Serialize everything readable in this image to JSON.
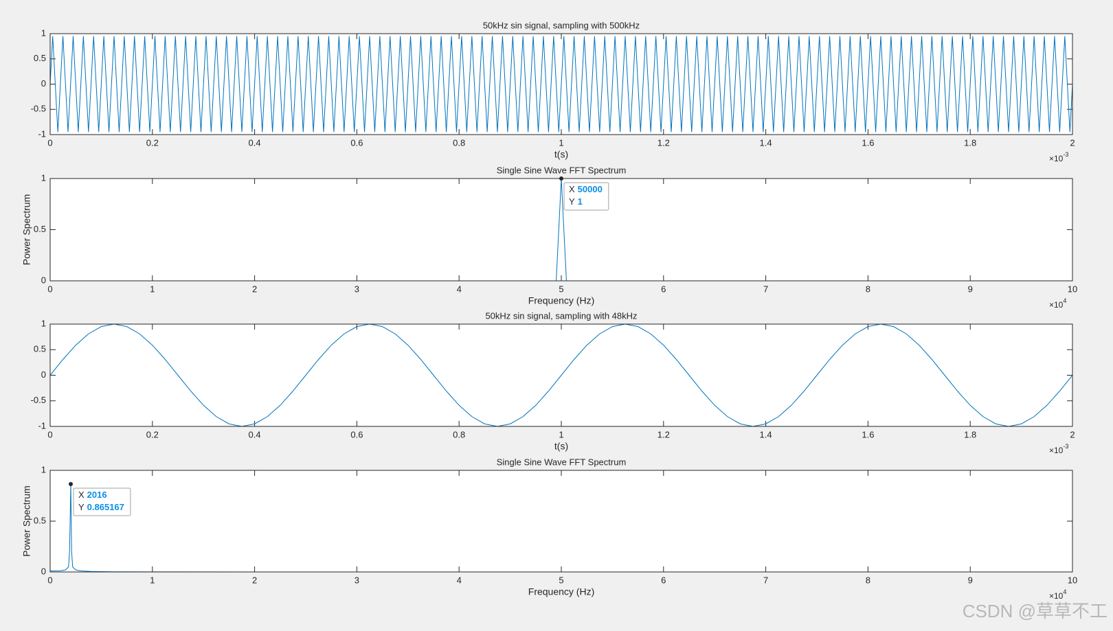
{
  "chart_data": [
    {
      "type": "line",
      "title": "50kHz sin signal, sampling with 500kHz",
      "xlabel": "t(s)",
      "x_multiplier": "×10",
      "x_exponent": "-3",
      "color": "#0072bd",
      "xlim": [
        0,
        2
      ],
      "xticks": [
        0,
        0.2,
        0.4,
        0.6,
        0.8,
        1,
        1.2,
        1.4,
        1.6,
        1.8,
        2
      ],
      "ylim": [
        -1,
        1
      ],
      "yticks": [
        -1,
        -0.5,
        0,
        0.5,
        1
      ],
      "x": [
        0,
        0.005,
        0.01,
        0.015,
        0.02,
        0.025,
        0.03,
        0.035,
        0.04,
        0.045,
        0.05,
        0.055,
        0.06,
        0.065,
        0.07,
        0.075,
        0.08,
        0.085,
        0.09,
        0.095,
        0.1,
        0.105,
        0.11,
        0.115,
        0.12,
        0.125,
        0.13,
        0.135,
        0.14,
        0.145,
        0.15,
        0.155,
        0.16,
        0.165,
        0.17,
        0.175,
        0.18,
        0.185,
        0.19,
        0.195,
        0.2,
        0.205,
        0.21,
        0.215,
        0.22,
        0.225,
        0.23,
        0.235,
        0.24,
        0.245,
        0.25,
        0.255,
        0.26,
        0.265,
        0.27,
        0.275,
        0.28,
        0.285,
        0.29,
        0.295,
        0.3,
        0.305,
        0.31,
        0.315,
        0.32,
        0.325,
        0.33,
        0.335,
        0.34,
        0.345,
        0.35,
        0.355,
        0.36,
        0.365,
        0.37,
        0.375,
        0.38,
        0.385,
        0.39,
        0.395,
        0.4,
        0.405,
        0.41,
        0.415,
        0.42,
        0.425,
        0.43,
        0.435,
        0.44,
        0.445,
        0.45,
        0.455,
        0.46,
        0.465,
        0.47,
        0.475,
        0.48,
        0.485,
        0.49,
        0.495,
        0.5,
        0.505,
        0.51,
        0.515,
        0.52,
        0.525,
        0.53,
        0.535,
        0.54,
        0.545,
        0.55,
        0.555,
        0.56,
        0.565,
        0.57,
        0.575,
        0.58,
        0.585,
        0.59,
        0.595,
        0.6,
        0.605,
        0.61,
        0.615,
        0.62,
        0.625,
        0.63,
        0.635,
        0.64,
        0.645,
        0.65,
        0.655,
        0.66,
        0.665,
        0.67,
        0.675,
        0.68,
        0.685,
        0.69,
        0.695,
        0.7,
        0.705,
        0.71,
        0.715,
        0.72,
        0.725,
        0.73,
        0.735,
        0.74,
        0.745,
        0.75,
        0.755,
        0.76,
        0.765,
        0.77,
        0.775,
        0.78,
        0.785,
        0.79,
        0.795,
        0.8,
        0.805,
        0.81,
        0.815,
        0.82,
        0.825,
        0.83,
        0.835,
        0.84,
        0.845,
        0.85,
        0.855,
        0.86,
        0.865,
        0.87,
        0.875,
        0.88,
        0.885,
        0.89,
        0.895,
        0.9,
        0.905,
        0.91,
        0.915,
        0.92,
        0.925,
        0.93,
        0.935,
        0.94,
        0.945,
        0.95,
        0.955,
        0.96,
        0.965,
        0.97,
        0.975,
        0.98,
        0.985,
        0.99,
        0.995,
        1,
        1.005,
        1.01,
        1.015,
        1.02,
        1.025,
        1.03,
        1.035,
        1.04,
        1.045,
        1.05,
        1.055,
        1.06,
        1.065,
        1.07,
        1.075,
        1.08,
        1.085,
        1.09,
        1.095,
        1.1,
        1.105,
        1.11,
        1.115,
        1.12,
        1.125,
        1.13,
        1.135,
        1.14,
        1.145,
        1.15,
        1.155,
        1.16,
        1.165,
        1.17,
        1.175,
        1.18,
        1.185,
        1.19,
        1.195,
        1.2,
        1.205,
        1.21,
        1.215,
        1.22,
        1.225,
        1.23,
        1.235,
        1.24,
        1.245,
        1.25,
        1.255,
        1.26,
        1.265,
        1.27,
        1.275,
        1.28,
        1.285,
        1.29,
        1.295,
        1.3,
        1.305,
        1.31,
        1.315,
        1.32,
        1.325,
        1.33,
        1.335,
        1.34,
        1.345,
        1.35,
        1.355,
        1.36,
        1.365,
        1.37,
        1.375,
        1.38,
        1.385,
        1.39,
        1.395,
        1.4,
        1.405,
        1.41,
        1.415,
        1.42,
        1.425,
        1.43,
        1.435,
        1.44,
        1.445,
        1.45,
        1.455,
        1.46,
        1.465,
        1.47,
        1.475,
        1.48,
        1.485,
        1.49,
        1.495,
        1.5,
        1.505,
        1.51,
        1.515,
        1.52,
        1.525,
        1.53,
        1.535,
        1.54,
        1.545,
        1.55,
        1.555,
        1.56,
        1.565,
        1.57,
        1.575,
        1.58,
        1.585,
        1.59,
        1.595,
        1.6,
        1.605,
        1.61,
        1.615,
        1.62,
        1.625,
        1.63,
        1.635,
        1.64,
        1.645,
        1.65,
        1.655,
        1.66,
        1.665,
        1.67,
        1.675,
        1.68,
        1.685,
        1.69,
        1.695,
        1.7,
        1.705,
        1.71,
        1.715,
        1.72,
        1.725,
        1.73,
        1.735,
        1.74,
        1.745,
        1.75,
        1.755,
        1.76,
        1.765,
        1.77,
        1.775,
        1.78,
        1.785,
        1.79,
        1.795,
        1.8,
        1.805,
        1.81,
        1.815,
        1.82,
        1.825,
        1.83,
        1.835,
        1.84,
        1.845,
        1.85,
        1.855,
        1.86,
        1.865,
        1.87,
        1.875,
        1.88,
        1.885,
        1.89,
        1.895,
        1.9,
        1.905,
        1.91,
        1.915,
        1.92,
        1.925,
        1.93,
        1.935,
        1.94,
        1.945,
        1.95,
        1.955,
        1.96,
        1.965,
        1.97,
        1.975,
        1.98,
        1.985,
        1.99,
        1.995,
        2
      ],
      "values": [
        0,
        0.95,
        0,
        -0.95,
        0,
        0.95,
        0,
        -0.95,
        0,
        0.95,
        0,
        -0.95,
        0,
        0.95,
        0,
        -0.95,
        0,
        0.95,
        0,
        -0.95,
        0,
        0.95,
        0,
        -0.95,
        0,
        0.95,
        0,
        -0.95,
        0,
        0.95,
        0,
        -0.95,
        0,
        0.95,
        0,
        -0.95,
        0,
        0.95,
        0,
        -0.95,
        0,
        0.95,
        0,
        -0.95,
        0,
        0.95,
        0,
        -0.95,
        0,
        0.95,
        0,
        -0.95,
        0,
        0.95,
        0,
        -0.95,
        0,
        0.95,
        0,
        -0.95,
        0,
        0.95,
        0,
        -0.95,
        0,
        0.95,
        0,
        -0.95,
        0,
        0.95,
        0,
        -0.95,
        0,
        0.95,
        0,
        -0.95,
        0,
        0.95,
        0,
        -0.95,
        0,
        0.95,
        0,
        -0.95,
        0,
        0.95,
        0,
        -0.95,
        0,
        0.95,
        0,
        -0.95,
        0,
        0.95,
        0,
        -0.95,
        0,
        0.95,
        0,
        -0.95,
        0,
        0.95,
        0,
        -0.95,
        0,
        0.95,
        0,
        -0.95,
        0,
        0.95,
        0,
        -0.95,
        0,
        0.95,
        0,
        -0.95,
        0,
        0.95,
        0,
        -0.95,
        0,
        0.95,
        0,
        -0.95,
        0,
        0.95,
        0,
        -0.95,
        0,
        0.95,
        0,
        -0.95,
        0,
        0.95,
        0,
        -0.95,
        0,
        0.95,
        0,
        -0.95,
        0,
        0.95,
        0,
        -0.95,
        0,
        0.95,
        0,
        -0.95,
        0,
        0.95,
        0,
        -0.95,
        0,
        0.95,
        0,
        -0.95,
        0,
        0.95,
        0,
        -0.95,
        0,
        0.95,
        0,
        -0.95,
        0,
        0.95,
        0,
        -0.95,
        0,
        0.95,
        0,
        -0.95,
        0,
        0.95,
        0,
        -0.95,
        0,
        0.95,
        0,
        -0.95,
        0,
        0.95,
        0,
        -0.95,
        0,
        0.95,
        0,
        -0.95,
        0,
        0.95,
        0,
        -0.95,
        0,
        0.95,
        0,
        -0.95,
        0,
        0.95,
        0,
        -0.95,
        0,
        0.95,
        0,
        -0.95,
        0,
        0.95,
        0,
        -0.95,
        0,
        0.95,
        0,
        -0.95,
        0,
        0.95,
        0,
        -0.95,
        0,
        0.95,
        0,
        -0.95,
        0,
        0.95,
        0,
        -0.95,
        0,
        0.95,
        0,
        -0.95,
        0,
        0.95,
        0,
        -0.95,
        0,
        0.95,
        0,
        -0.95,
        0,
        0.95,
        0,
        -0.95,
        0,
        0.95,
        0,
        -0.95,
        0,
        0.95,
        0,
        -0.95,
        0,
        0.95,
        0,
        -0.95,
        0,
        0.95,
        0,
        -0.95,
        0,
        0.95,
        0,
        -0.95,
        0,
        0.95,
        0,
        -0.95,
        0,
        0.95,
        0,
        -0.95,
        0,
        0.95,
        0,
        -0.95,
        0,
        0.95,
        0,
        -0.95,
        0,
        0.95,
        0,
        -0.95,
        0,
        0.95,
        0,
        -0.95,
        0,
        0.95,
        0,
        -0.95,
        0,
        0.95,
        0,
        -0.95,
        0,
        0.95,
        0,
        -0.95,
        0,
        0.95,
        0,
        -0.95,
        0,
        0.95,
        0,
        -0.95,
        0,
        0.95,
        0,
        -0.95,
        0,
        0.95,
        0,
        -0.95,
        0,
        0.95,
        0,
        -0.95,
        0,
        0.95,
        0,
        -0.95,
        0,
        0.95,
        0,
        -0.95,
        0,
        0.95,
        0,
        -0.95,
        0,
        0.95,
        0,
        -0.95,
        0,
        0.95,
        0,
        -0.95,
        0,
        0.95,
        0,
        -0.95,
        0,
        0.95,
        0,
        -0.95,
        0,
        0.95,
        0,
        -0.95,
        0,
        0.95,
        0,
        -0.95,
        0,
        0.95,
        0,
        -0.95,
        0,
        0.95,
        0,
        -0.95,
        0,
        0.95,
        0,
        -0.95,
        0,
        0.95,
        0,
        -0.95,
        0,
        0.95,
        0,
        -0.95,
        0,
        0.95,
        0,
        -0.95,
        0,
        0.95,
        0,
        -0.95,
        0,
        0.95,
        0,
        -0.95,
        0,
        0.95,
        0,
        -0.95,
        0,
        0.95,
        0,
        -0.95,
        0,
        0.95,
        0,
        -0.95,
        0,
        0.95,
        0,
        -0.95,
        0
      ]
    },
    {
      "type": "line",
      "title": "Single Sine Wave FFT Spectrum",
      "xlabel": "Frequency (Hz)",
      "ylabel": "Power Spectrum",
      "x_multiplier": "×10",
      "x_exponent": "4",
      "color": "#0072bd",
      "xlim": [
        0,
        100000
      ],
      "xticks": [
        0,
        {
          "value": 10000,
          "label": "1"
        },
        {
          "value": 20000,
          "label": "2"
        },
        {
          "value": 30000,
          "label": "3"
        },
        {
          "value": 40000,
          "label": "4"
        },
        {
          "value": 50000,
          "label": "5"
        },
        {
          "value": 60000,
          "label": "6"
        },
        {
          "value": 70000,
          "label": "7"
        },
        {
          "value": 80000,
          "label": "8"
        },
        {
          "value": 90000,
          "label": "9"
        },
        {
          "value": 100000,
          "label": "10"
        }
      ],
      "ylim": [
        0,
        1
      ],
      "yticks": [
        0,
        0.5,
        1
      ],
      "x": [
        0,
        49500,
        50000,
        50500,
        100000
      ],
      "values": [
        0,
        0,
        1,
        0,
        0
      ],
      "datatip": {
        "x_label": "X",
        "x": 50000,
        "y_label": "Y",
        "y": 1
      }
    },
    {
      "type": "line",
      "title": "50kHz sin signal, sampling with 48kHz",
      "xlabel": "t(s)",
      "x_multiplier": "×10",
      "x_exponent": "-3",
      "color": "#0072bd",
      "xlim": [
        0,
        2
      ],
      "xticks": [
        0,
        0.2,
        0.4,
        0.6,
        0.8,
        1,
        1.2,
        1.4,
        1.6,
        1.8,
        2
      ],
      "ylim": [
        -1,
        1
      ],
      "yticks": [
        -1,
        -0.5,
        0,
        0.5,
        1
      ],
      "x": [
        0,
        0.025,
        0.05,
        0.075,
        0.1,
        0.125,
        0.15,
        0.175,
        0.2,
        0.225,
        0.25,
        0.275,
        0.3,
        0.325,
        0.35,
        0.375,
        0.4,
        0.425,
        0.45,
        0.475,
        0.5,
        0.525,
        0.55,
        0.575,
        0.6,
        0.625,
        0.65,
        0.675,
        0.7,
        0.725,
        0.75,
        0.775,
        0.8,
        0.825,
        0.85,
        0.875,
        0.9,
        0.925,
        0.95,
        0.975,
        1,
        1.025,
        1.05,
        1.075,
        1.1,
        1.125,
        1.15,
        1.175,
        1.2,
        1.225,
        1.25,
        1.275,
        1.3,
        1.325,
        1.35,
        1.375,
        1.4,
        1.425,
        1.45,
        1.475,
        1.5,
        1.525,
        1.55,
        1.575,
        1.6,
        1.625,
        1.65,
        1.675,
        1.7,
        1.725,
        1.75,
        1.775,
        1.8,
        1.825,
        1.85,
        1.875,
        1.9,
        1.925,
        1.95,
        1.975,
        2
      ],
      "values": [
        0,
        0.309,
        0.588,
        0.809,
        0.951,
        1,
        0.951,
        0.809,
        0.588,
        0.309,
        0,
        -0.309,
        -0.588,
        -0.809,
        -0.951,
        -1,
        -0.951,
        -0.809,
        -0.588,
        -0.309,
        0,
        0.309,
        0.588,
        0.809,
        0.951,
        1,
        0.951,
        0.809,
        0.588,
        0.309,
        0,
        -0.309,
        -0.588,
        -0.809,
        -0.951,
        -1,
        -0.951,
        -0.809,
        -0.588,
        -0.309,
        0,
        0.309,
        0.588,
        0.809,
        0.951,
        1,
        0.951,
        0.809,
        0.588,
        0.309,
        0,
        -0.309,
        -0.588,
        -0.809,
        -0.951,
        -1,
        -0.951,
        -0.809,
        -0.588,
        -0.309,
        0,
        0.309,
        0.588,
        0.809,
        0.951,
        1,
        0.951,
        0.809,
        0.588,
        0.309,
        0,
        -0.309,
        -0.588,
        -0.809,
        -0.951,
        -1,
        -0.951,
        -0.809,
        -0.588,
        -0.309,
        0
      ]
    },
    {
      "type": "line",
      "title": "Single Sine Wave FFT Spectrum",
      "xlabel": "Frequency (Hz)",
      "ylabel": "Power Spectrum",
      "x_multiplier": "×10",
      "x_exponent": "4",
      "color": "#0072bd",
      "xlim": [
        0,
        100000
      ],
      "xticks": [
        0,
        {
          "value": 10000,
          "label": "1"
        },
        {
          "value": 20000,
          "label": "2"
        },
        {
          "value": 30000,
          "label": "3"
        },
        {
          "value": 40000,
          "label": "4"
        },
        {
          "value": 50000,
          "label": "5"
        },
        {
          "value": 60000,
          "label": "6"
        },
        {
          "value": 70000,
          "label": "7"
        },
        {
          "value": 80000,
          "label": "8"
        },
        {
          "value": 90000,
          "label": "9"
        },
        {
          "value": 100000,
          "label": "10"
        }
      ],
      "ylim": [
        0,
        1
      ],
      "yticks": [
        0,
        0.5,
        1
      ],
      "x": [
        0,
        1000,
        1500,
        1800,
        1900,
        2016,
        2100,
        2200,
        2500,
        3000,
        4000,
        6000,
        10000,
        24000
      ],
      "values": [
        0.01,
        0.012,
        0.02,
        0.05,
        0.2,
        0.865167,
        0.2,
        0.05,
        0.02,
        0.01,
        0.005,
        0.002,
        0.001,
        0
      ],
      "datatip": {
        "x_label": "X",
        "x": 2016,
        "y_label": "Y",
        "y": 0.865167
      }
    }
  ],
  "watermark": "CSDN @草草不工"
}
